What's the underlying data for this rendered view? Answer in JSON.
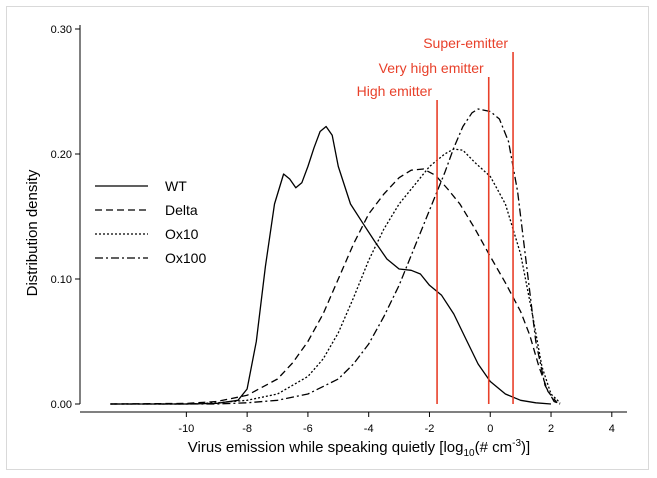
{
  "chart_data": {
    "type": "line",
    "title": "",
    "xlabel_main": "Virus emission while speaking quietly [log",
    "xlabel_sub": "10",
    "xlabel_paren": "(# cm",
    "xlabel_sup": "-3",
    "xlabel_end": ")]",
    "ylabel": "Distribution density",
    "xlim": [
      -13.5,
      4.5
    ],
    "ylim": [
      0,
      0.3
    ],
    "xticks": [
      -10,
      -8,
      -6,
      -4,
      -2,
      0,
      2,
      4
    ],
    "xtick_labels": [
      "-10",
      "-8",
      "-6",
      "-4",
      "-2",
      "0",
      "2",
      "4"
    ],
    "yticks": [
      0,
      0.1,
      0.2,
      0.3
    ],
    "ytick_labels": [
      "0.00",
      "0.10",
      "0.20",
      "0.30"
    ],
    "grid": false,
    "legend_position": "middle-left",
    "series": [
      {
        "name": "WT",
        "dash": "solid",
        "points": [
          [
            -12.5,
            0
          ],
          [
            -10,
            0
          ],
          [
            -9,
            0.0005
          ],
          [
            -8.3,
            0.003
          ],
          [
            -8,
            0.012
          ],
          [
            -7.7,
            0.05
          ],
          [
            -7.4,
            0.11
          ],
          [
            -7.1,
            0.16
          ],
          [
            -6.8,
            0.184
          ],
          [
            -6.6,
            0.18
          ],
          [
            -6.4,
            0.173
          ],
          [
            -6.2,
            0.177
          ],
          [
            -6,
            0.19
          ],
          [
            -5.8,
            0.205
          ],
          [
            -5.6,
            0.218
          ],
          [
            -5.4,
            0.222
          ],
          [
            -5.2,
            0.215
          ],
          [
            -5,
            0.19
          ],
          [
            -4.6,
            0.16
          ],
          [
            -4.2,
            0.145
          ],
          [
            -3.8,
            0.13
          ],
          [
            -3.4,
            0.116
          ],
          [
            -3,
            0.108
          ],
          [
            -2.6,
            0.107
          ],
          [
            -2.3,
            0.104
          ],
          [
            -2,
            0.095
          ],
          [
            -1.6,
            0.087
          ],
          [
            -1.2,
            0.072
          ],
          [
            -0.8,
            0.052
          ],
          [
            -0.4,
            0.032
          ],
          [
            0,
            0.018
          ],
          [
            0.5,
            0.008
          ],
          [
            1,
            0.003
          ],
          [
            1.5,
            0.001
          ],
          [
            2,
            0
          ]
        ]
      },
      {
        "name": "Delta",
        "dash": "dashed",
        "points": [
          [
            -12.5,
            0
          ],
          [
            -10,
            0.0005
          ],
          [
            -9,
            0.002
          ],
          [
            -8,
            0.007
          ],
          [
            -7,
            0.02
          ],
          [
            -6.5,
            0.033
          ],
          [
            -6,
            0.05
          ],
          [
            -5.5,
            0.072
          ],
          [
            -5,
            0.1
          ],
          [
            -4.5,
            0.128
          ],
          [
            -4,
            0.152
          ],
          [
            -3.5,
            0.168
          ],
          [
            -3,
            0.181
          ],
          [
            -2.6,
            0.187
          ],
          [
            -2.2,
            0.188
          ],
          [
            -1.8,
            0.183
          ],
          [
            -1.4,
            0.172
          ],
          [
            -1,
            0.16
          ],
          [
            -0.5,
            0.14
          ],
          [
            0,
            0.118
          ],
          [
            0.5,
            0.097
          ],
          [
            1,
            0.074
          ],
          [
            1.3,
            0.055
          ],
          [
            1.6,
            0.03
          ],
          [
            1.9,
            0.01
          ],
          [
            2.2,
            0.001
          ]
        ]
      },
      {
        "name": "Ox10",
        "dash": "dotted",
        "points": [
          [
            -12.5,
            0
          ],
          [
            -10,
            0
          ],
          [
            -9,
            0.001
          ],
          [
            -8,
            0.003
          ],
          [
            -7,
            0.008
          ],
          [
            -6,
            0.022
          ],
          [
            -5.5,
            0.036
          ],
          [
            -5,
            0.057
          ],
          [
            -4.5,
            0.085
          ],
          [
            -4,
            0.115
          ],
          [
            -3.5,
            0.14
          ],
          [
            -3,
            0.16
          ],
          [
            -2.5,
            0.175
          ],
          [
            -2,
            0.19
          ],
          [
            -1.5,
            0.2
          ],
          [
            -1.2,
            0.204
          ],
          [
            -0.9,
            0.203
          ],
          [
            -0.5,
            0.193
          ],
          [
            0,
            0.182
          ],
          [
            0.5,
            0.16
          ],
          [
            1,
            0.12
          ],
          [
            1.4,
            0.07
          ],
          [
            1.7,
            0.03
          ],
          [
            2,
            0.008
          ],
          [
            2.3,
            0.001
          ]
        ]
      },
      {
        "name": "Ox100",
        "dash": "dashdot",
        "points": [
          [
            -12.5,
            0
          ],
          [
            -9,
            0
          ],
          [
            -8,
            0.001
          ],
          [
            -7,
            0.003
          ],
          [
            -6,
            0.008
          ],
          [
            -5,
            0.02
          ],
          [
            -4.5,
            0.032
          ],
          [
            -4,
            0.048
          ],
          [
            -3.5,
            0.07
          ],
          [
            -3,
            0.095
          ],
          [
            -2.5,
            0.125
          ],
          [
            -2,
            0.155
          ],
          [
            -1.5,
            0.185
          ],
          [
            -1.2,
            0.205
          ],
          [
            -0.9,
            0.222
          ],
          [
            -0.6,
            0.233
          ],
          [
            -0.4,
            0.236
          ],
          [
            0,
            0.234
          ],
          [
            0.3,
            0.228
          ],
          [
            0.6,
            0.21
          ],
          [
            0.9,
            0.17
          ],
          [
            1.2,
            0.11
          ],
          [
            1.5,
            0.05
          ],
          [
            1.8,
            0.015
          ],
          [
            2.1,
            0.002
          ],
          [
            2.3,
            0
          ]
        ]
      }
    ],
    "thresholds": [
      {
        "label": "High emitter",
        "x": -1.75
      },
      {
        "label": "Very high emitter",
        "x": -0.05
      },
      {
        "label": "Super-emitter",
        "x": 0.75
      }
    ],
    "threshold_color": "#e8402a"
  }
}
